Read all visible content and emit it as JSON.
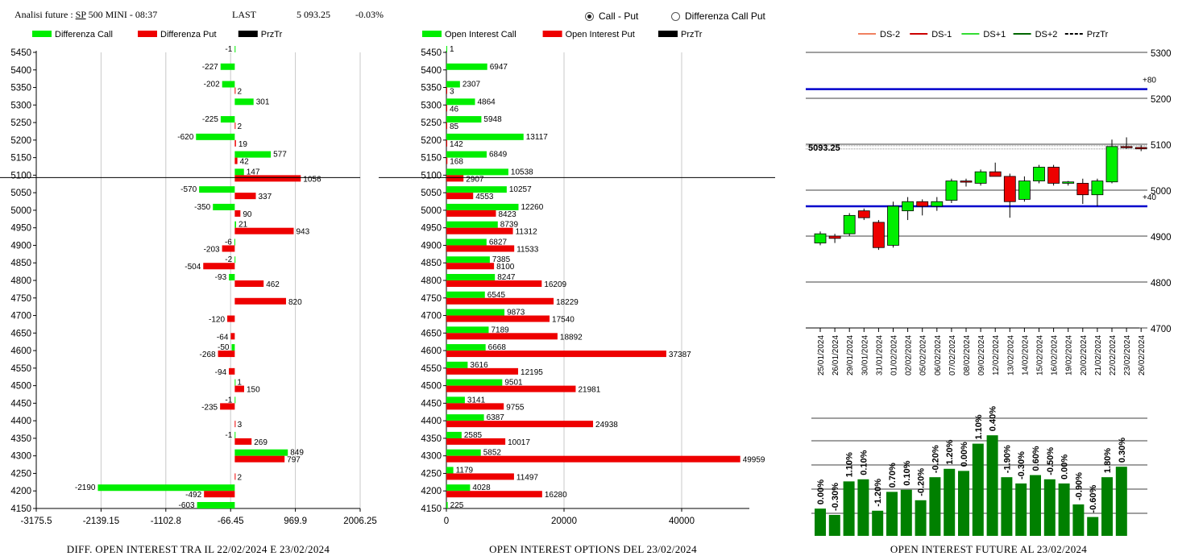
{
  "header": {
    "title_prefix": "Analisi future : ",
    "symbol": "SP",
    "title_suffix": " 500 MINI - 08:37",
    "last_label": "LAST",
    "last_value": "5 093.25",
    "change": "-0.03%",
    "radio_options": [
      {
        "label": "Call - Put",
        "selected": true
      },
      {
        "label": "Differenza Call Put",
        "selected": false
      }
    ]
  },
  "colors": {
    "call": "#00ee00",
    "put": "#ee0000",
    "price": "#000000",
    "level_line": "#0000cc",
    "oi_bar": "#008000"
  },
  "footers": {
    "diff": "DIFF. OPEN INTEREST TRA IL 22/02/2024 E 23/02/2024",
    "oi": "OPEN INTEREST OPTIONS DEL 23/02/2024",
    "future": "OPEN INTEREST FUTURE AL 23/02/2024"
  },
  "chart_data": [
    {
      "type": "bar",
      "orientation": "horizontal",
      "legend": [
        "Differenza Call",
        "Differenza Put",
        "PrzTr"
      ],
      "strikes": [
        5450,
        5400,
        5350,
        5300,
        5250,
        5200,
        5150,
        5100,
        5050,
        5000,
        4950,
        4900,
        4850,
        4800,
        4750,
        4700,
        4650,
        4600,
        4550,
        4500,
        4450,
        4400,
        4350,
        4300,
        4250,
        4200,
        4150
      ],
      "series": [
        {
          "name": "Differenza Call",
          "values": [
            -1,
            -227,
            -202,
            301,
            -225,
            -620,
            577,
            147,
            -570,
            -350,
            21,
            -6,
            -2,
            -93,
            null,
            null,
            null,
            -50,
            null,
            1,
            -1,
            null,
            -1,
            849,
            null,
            -2190,
            -603
          ]
        },
        {
          "name": "Differenza Put",
          "values": [
            null,
            null,
            2,
            null,
            2,
            19,
            42,
            1056,
            337,
            90,
            943,
            -203,
            -504,
            462,
            820,
            -120,
            -64,
            -268,
            -94,
            150,
            -235,
            3,
            269,
            797,
            2,
            -492,
            null
          ]
        }
      ],
      "price": 5093.25,
      "xlim": [
        -3175.5,
        2006.25
      ],
      "xticks": [
        "-3175.5",
        "-2139.15",
        "-1102.8",
        "-66.45",
        "969.9",
        "2006.25"
      ]
    },
    {
      "type": "bar",
      "orientation": "horizontal",
      "legend": [
        "Open Interest Call",
        "Open Interest Put",
        "PrzTr"
      ],
      "strikes": [
        5450,
        5400,
        5350,
        5300,
        5250,
        5200,
        5150,
        5100,
        5050,
        5000,
        4950,
        4900,
        4850,
        4800,
        4750,
        4700,
        4650,
        4600,
        4550,
        4500,
        4450,
        4400,
        4350,
        4300,
        4250,
        4200,
        4150
      ],
      "series": [
        {
          "name": "Open Interest Call",
          "values": [
            1,
            6947,
            2307,
            4864,
            5948,
            13117,
            6849,
            10538,
            10257,
            12260,
            8739,
            6827,
            7385,
            8247,
            6545,
            9873,
            7189,
            6668,
            3616,
            9501,
            3141,
            6387,
            2585,
            5852,
            1179,
            4028,
            225
          ]
        },
        {
          "name": "Open Interest Put",
          "values": [
            null,
            null,
            3,
            46,
            85,
            142,
            168,
            2907,
            4553,
            8423,
            11312,
            11533,
            8100,
            16209,
            18229,
            17540,
            18892,
            37387,
            12195,
            21981,
            9755,
            24938,
            10017,
            49959,
            11497,
            16280,
            null
          ]
        }
      ],
      "price": 5093.25,
      "xlim": [
        0,
        50000
      ],
      "xticks": [
        "0",
        "20000",
        "40000"
      ]
    },
    {
      "type": "candlestick",
      "legend": [
        "DS-2",
        "DS-1",
        "DS+1",
        "DS+2",
        "PrzTr"
      ],
      "dates": [
        "25/01/2024",
        "26/01/2024",
        "29/01/2024",
        "30/01/2024",
        "31/01/2024",
        "01/02/2024",
        "02/02/2024",
        "05/02/2024",
        "06/02/2024",
        "07/02/2024",
        "08/02/2024",
        "09/02/2024",
        "12/02/2024",
        "13/02/2024",
        "14/02/2024",
        "15/02/2024",
        "16/02/2024",
        "19/02/2024",
        "20/02/2024",
        "21/02/2024",
        "22/02/2024",
        "23/02/2024",
        "26/02/2024"
      ],
      "ohlc": [
        [
          4885,
          4910,
          4880,
          4905
        ],
        [
          4900,
          4905,
          4885,
          4895
        ],
        [
          4905,
          4950,
          4900,
          4945
        ],
        [
          4955,
          4960,
          4935,
          4940
        ],
        [
          4930,
          4935,
          4870,
          4875
        ],
        [
          4880,
          4975,
          4875,
          4965
        ],
        [
          4955,
          4985,
          4935,
          4975
        ],
        [
          4975,
          4980,
          4945,
          4965
        ],
        [
          4965,
          4985,
          4955,
          4975
        ],
        [
          4978,
          5025,
          4972,
          5020
        ],
        [
          5020,
          5025,
          5008,
          5018
        ],
        [
          5015,
          5045,
          5010,
          5040
        ],
        [
          5040,
          5060,
          5030,
          5030
        ],
        [
          5030,
          5036,
          4940,
          4975
        ],
        [
          4980,
          5030,
          4975,
          5020
        ],
        [
          5020,
          5055,
          5015,
          5050
        ],
        [
          5050,
          5055,
          5010,
          5015
        ],
        [
          5015,
          5020,
          5010,
          5018
        ],
        [
          5015,
          5025,
          4970,
          4990
        ],
        [
          4990,
          5025,
          4965,
          5020
        ],
        [
          5018,
          5110,
          5015,
          5095
        ],
        [
          5095,
          5115,
          5090,
          5093
        ],
        [
          5093,
          5098,
          5085,
          5090
        ]
      ],
      "price_label": "5093.25",
      "level_labels": [
        "+80",
        "+40"
      ],
      "yticks": [
        "5300",
        "5200",
        "5100",
        "5000",
        "4900",
        "4800",
        "4700"
      ],
      "ylim": [
        4700,
        5300
      ]
    },
    {
      "type": "bar",
      "series": [
        {
          "name": "",
          "values": [
            13,
            10,
            26,
            27,
            12,
            21,
            22,
            17,
            28,
            32,
            31,
            44,
            48,
            28,
            25,
            29,
            27,
            25,
            15,
            9,
            28,
            33
          ]
        }
      ],
      "labels": [
        "0.00%",
        "-0.30%",
        "1.10%",
        "0.10%",
        "-1.20%",
        "0.70%",
        "0.10%",
        "-0.20%",
        "-0.20%",
        "1.20%",
        "0.00%",
        "1.10%",
        "0.40%",
        "-1.90%",
        "-0.30%",
        "0.60%",
        "-0.50%",
        "0.00%",
        "-0.90%",
        "-0.60%",
        "1.80%",
        "0.30%"
      ]
    }
  ]
}
